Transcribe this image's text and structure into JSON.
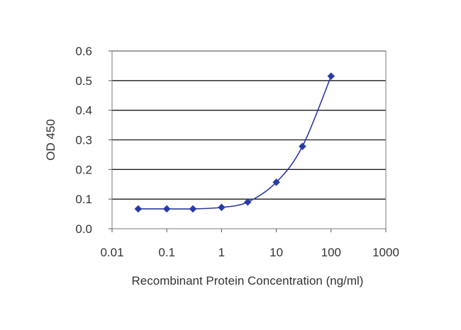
{
  "chart_data": {
    "type": "line",
    "title": "",
    "xlabel": "Recombinant Protein Concentration (ng/ml)",
    "ylabel": "OD 450",
    "x_scale": "log",
    "xlim": [
      0.01,
      1000
    ],
    "ylim": [
      0,
      0.6
    ],
    "x_tick_labels": [
      "0.01",
      "0.1",
      "1",
      "10",
      "100",
      "1000"
    ],
    "y_tick_labels": [
      "0.0",
      "0.1",
      "0.2",
      "0.3",
      "0.4",
      "0.5",
      "0.6"
    ],
    "grid": "horizontal",
    "legend": "none",
    "series": [
      {
        "color": "#2a3aa6",
        "marker": "diamond",
        "x": [
          0.03,
          0.1,
          0.3,
          1,
          3,
          10,
          30,
          100
        ],
        "y": [
          0.067,
          0.067,
          0.067,
          0.072,
          0.09,
          0.157,
          0.278,
          0.515
        ]
      }
    ]
  }
}
